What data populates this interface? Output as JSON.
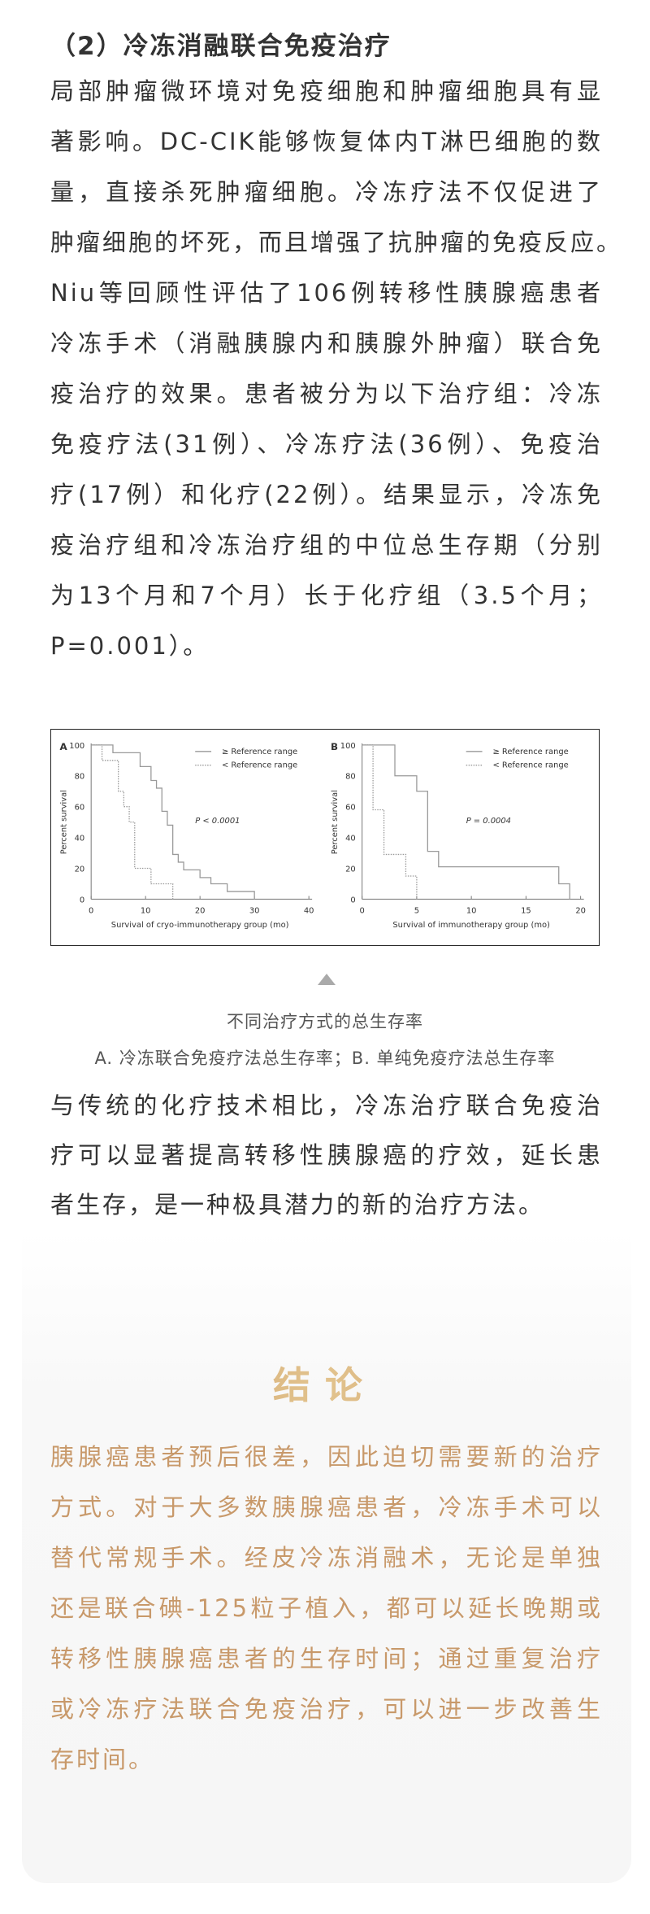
{
  "section": {
    "heading": "（2）冷冻消融联合免疫治疗",
    "paragraph1_lines": [
      "局部肿瘤微环境对免疫细胞和肿瘤细胞具有显",
      "著影响。DC-CIK能够恢复体内T淋巴细胞的数",
      "量，直接杀死肿瘤细胞。冷冻疗法不仅促进了",
      "肿瘤细胞的坏死，而且增强了抗肿瘤的免疫反应。"
    ],
    "paragraph2_lines": [
      "Niu等回顾性评估了106例转移性胰腺癌患者",
      "冷冻手术（消融胰腺内和胰腺外肿瘤）联合免",
      "疫治疗的效果。患者被分为以下治疗组：冷冻",
      "免疫疗法(31例）、冷冻疗法(36例）、免疫治",
      "疗(17例）和化疗(22例）。结果显示，冷冻免",
      "疫治疗组和冷冻治疗组的中位总生存期（分别",
      "为13个月和7个月）长于化疗组（3.5个月；",
      "P=0.001）。"
    ],
    "paragraph3_lines": [
      "与传统的化疗技术相比，冷冻治疗联合免疫治",
      "疗可以显著提高转移性胰腺癌的疗效，延长患",
      "者生存，是一种极具潜力的新的治疗方法。"
    ]
  },
  "figure": {
    "caption_title": "不同治疗方式的总生存率",
    "caption_sub": "A. 冷冻联合免疫疗法总生存率；B. 单纯免疫疗法总生存率",
    "triangle_icon": "triangle-up-icon"
  },
  "chart_data": [
    {
      "type": "line",
      "step": true,
      "panel_label": "A",
      "xlabel": "Survival of cryo-immunotherapy group (mo)",
      "ylabel": "Percent survival",
      "xlim": [
        0,
        40
      ],
      "ylim": [
        0,
        100
      ],
      "xticks": [
        0,
        10,
        20,
        30,
        40
      ],
      "yticks": [
        0,
        20,
        40,
        60,
        80,
        100
      ],
      "annotation": "P < 0.0001",
      "legend_position": "top-right",
      "grid": false,
      "series": [
        {
          "name": "≥ Reference range",
          "style": "solid",
          "x": [
            0,
            4,
            9,
            11,
            12,
            13,
            14,
            15,
            16,
            17,
            20,
            22,
            25,
            30
          ],
          "y": [
            100,
            95,
            86,
            77,
            72,
            57,
            48,
            29,
            24,
            19,
            14,
            10,
            5,
            0
          ]
        },
        {
          "name": "< Reference range",
          "style": "dotted",
          "x": [
            0,
            2,
            5,
            6,
            7,
            8,
            11,
            15
          ],
          "y": [
            100,
            90,
            70,
            60,
            50,
            20,
            10,
            0
          ]
        }
      ]
    },
    {
      "type": "line",
      "step": true,
      "panel_label": "B",
      "xlabel": "Survival of immunotherapy group (mo)",
      "ylabel": "Percent survival",
      "xlim": [
        0,
        20
      ],
      "ylim": [
        0,
        100
      ],
      "xticks": [
        0,
        5,
        10,
        15,
        20
      ],
      "yticks": [
        0,
        20,
        40,
        60,
        80,
        100
      ],
      "annotation": "P = 0.0004",
      "legend_position": "top-right",
      "grid": false,
      "series": [
        {
          "name": "≥ Reference range",
          "style": "solid",
          "x": [
            0,
            3,
            5,
            6,
            7,
            18,
            19
          ],
          "y": [
            100,
            80,
            70,
            31,
            21,
            10,
            0
          ]
        },
        {
          "name": "< Reference range",
          "style": "dotted",
          "x": [
            0,
            1,
            2,
            4,
            5
          ],
          "y": [
            100,
            58,
            29,
            15,
            0
          ]
        }
      ]
    }
  ],
  "conclusion": {
    "title": "结论",
    "lines": [
      "胰腺癌患者预后很差，因此迫切需要新的治疗",
      "方式。对于大多数胰腺癌患者，冷冻手术可以",
      "替代常规手术。经皮冷冻消融术，无论是单独",
      "还是联合碘-125粒子植入，都可以延长晚期或",
      "转移性胰腺癌患者的生存时间；通过重复治疗",
      "或冷冻疗法联合免疫治疗，可以进一步改善生",
      "存时间。"
    ]
  },
  "colors": {
    "body_text": "#333333",
    "conclusion_text": "#c8996a",
    "conclusion_title_gold": "#c69058",
    "curve": "#9a9a9a"
  }
}
